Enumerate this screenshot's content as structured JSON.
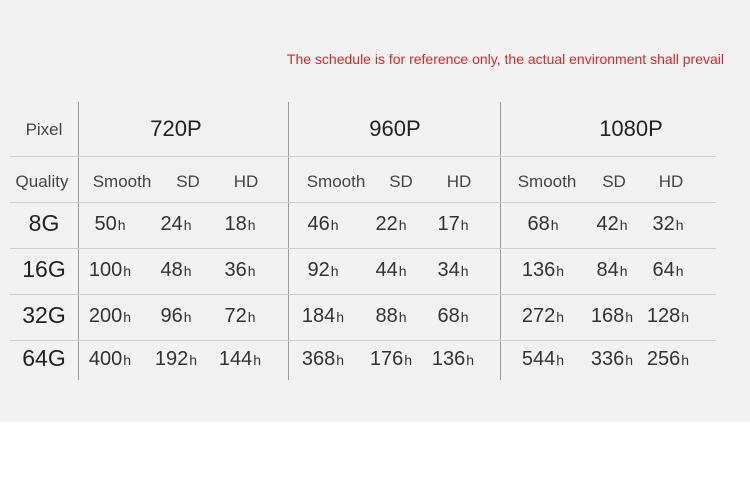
{
  "notice": "The schedule is for reference only, the actual environment shall prevail",
  "header": {
    "pixel_label": "Pixel",
    "quality_label": "Quality",
    "resolutions": [
      "720P",
      "960P",
      "1080P"
    ],
    "qualities": [
      "Smooth",
      "SD",
      "HD"
    ]
  },
  "unit": "h",
  "rows": [
    {
      "capacity": "8G",
      "values": [
        "50",
        "24",
        "18",
        "46",
        "22",
        "17",
        "68",
        "42",
        "32"
      ]
    },
    {
      "capacity": "16G",
      "values": [
        "100",
        "48",
        "36",
        "92",
        "44",
        "34",
        "136",
        "84",
        "64"
      ]
    },
    {
      "capacity": "32G",
      "values": [
        "200",
        "96",
        "72",
        "184",
        "88",
        "68",
        "272",
        "168",
        "128"
      ]
    },
    {
      "capacity": "64G",
      "values": [
        "400",
        "192",
        "144",
        "368",
        "176",
        "136",
        "544",
        "336",
        "256"
      ]
    }
  ]
}
